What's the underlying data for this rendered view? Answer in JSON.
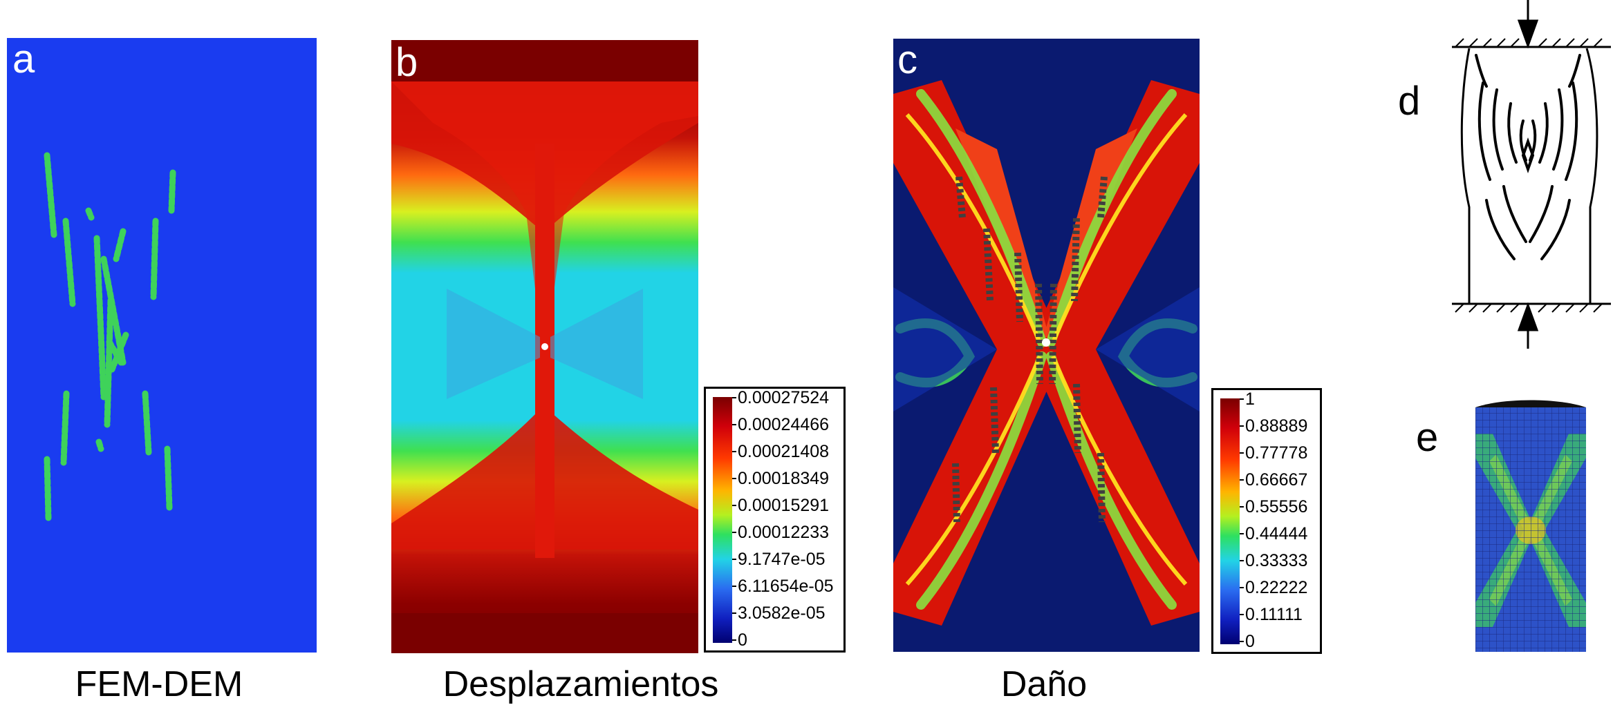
{
  "panels": {
    "a": {
      "letter": "a",
      "caption": "FEM-DEM"
    },
    "b": {
      "letter": "b",
      "caption": "Desplazamientos",
      "colorbar": [
        "0.00027524",
        "0.00024466",
        "0.00021408",
        "0.00018349",
        "0.00015291",
        "0.00012233",
        "9.1747e-05",
        "6.11654e-05",
        "3.0582e-05",
        "0"
      ]
    },
    "c": {
      "letter": "c",
      "caption": "Daño",
      "colorbar": [
        "1",
        "0.88889",
        "0.77778",
        "0.66667",
        "0.55556",
        "0.44444",
        "0.33333",
        "0.22222",
        "0.11111",
        "0"
      ]
    },
    "d": {
      "letter": "d"
    },
    "e": {
      "letter": "e"
    }
  },
  "colors": {
    "fem_background": "#1a3cf0",
    "crack_green": "#3fd25a",
    "dark_red": "#7a0000",
    "red": "#e81a0a",
    "cyan": "#22d3e6",
    "navy": "#0a1a70",
    "mesh_blue": "#2d52c8"
  }
}
